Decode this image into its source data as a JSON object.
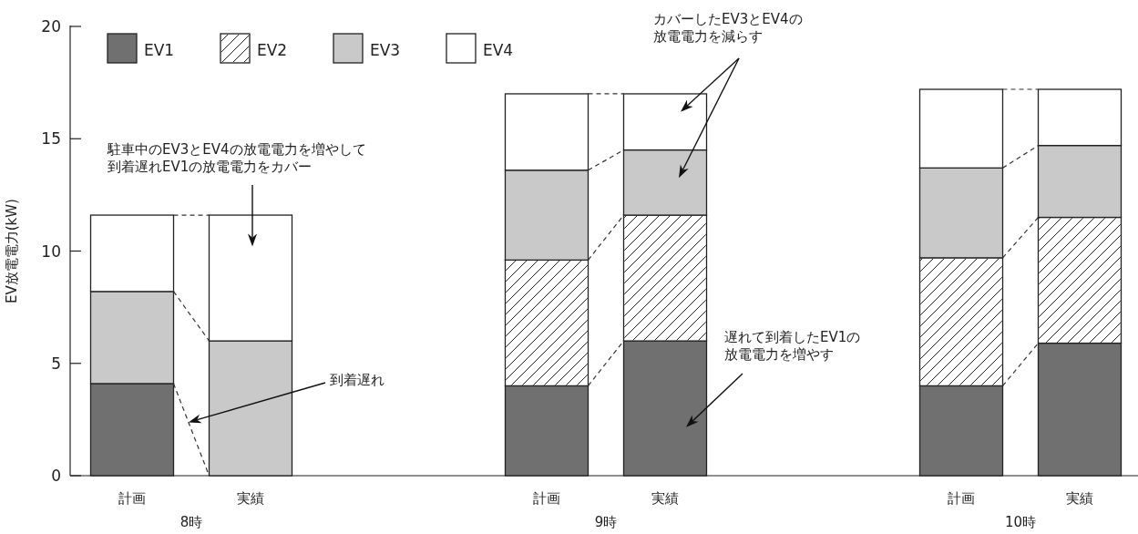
{
  "chart_data": {
    "type": "bar",
    "stacked": true,
    "ylabel": "EV放電電力(kW)",
    "categories": [
      "計画",
      null,
      "実績",
      null,
      null,
      null,
      null,
      "計画",
      null,
      "実績",
      null,
      null,
      null,
      null,
      "計画",
      null,
      "実績"
    ],
    "series": [
      {
        "name": "EV1",
        "color": "#707070",
        "values": [
          4.1,
          null,
          0,
          null,
          null,
          null,
          null,
          4.0,
          null,
          6.0,
          null,
          null,
          null,
          null,
          4.0,
          null,
          5.9
        ]
      },
      {
        "name": "EV2",
        "color": "#ffffff",
        "values": [
          0,
          null,
          0,
          null,
          null,
          null,
          null,
          5.6,
          null,
          5.6,
          null,
          null,
          null,
          null,
          5.7,
          null,
          5.6
        ]
      },
      {
        "name": "EV3",
        "color": "#c8c9c8",
        "values": [
          4.1,
          null,
          6.0,
          null,
          null,
          null,
          null,
          4.0,
          null,
          2.9,
          null,
          null,
          null,
          null,
          4.0,
          null,
          3.2
        ]
      },
      {
        "name": "EV4",
        "color": "#ffffff",
        "values": [
          3.4,
          null,
          5.6,
          null,
          null,
          null,
          null,
          3.4,
          null,
          2.5,
          null,
          null,
          null,
          null,
          3.5,
          null,
          2.5
        ]
      }
    ],
    "ylim": [
      0,
      20
    ],
    "yticks": [
      0,
      5,
      10,
      15,
      20
    ],
    "grid": false,
    "legend": "top left",
    "annotations": [
      "8時",
      "9時",
      "10時",
      "駐車中のEV3とEV4の放電電力を増やして到着遅れEV1の放電電力をカバー",
      "到着遅れ",
      "カバーしたEV3とEV4の放電電力を減らす",
      "遅れて到着したEV1の放電電力を増やす"
    ]
  }
}
